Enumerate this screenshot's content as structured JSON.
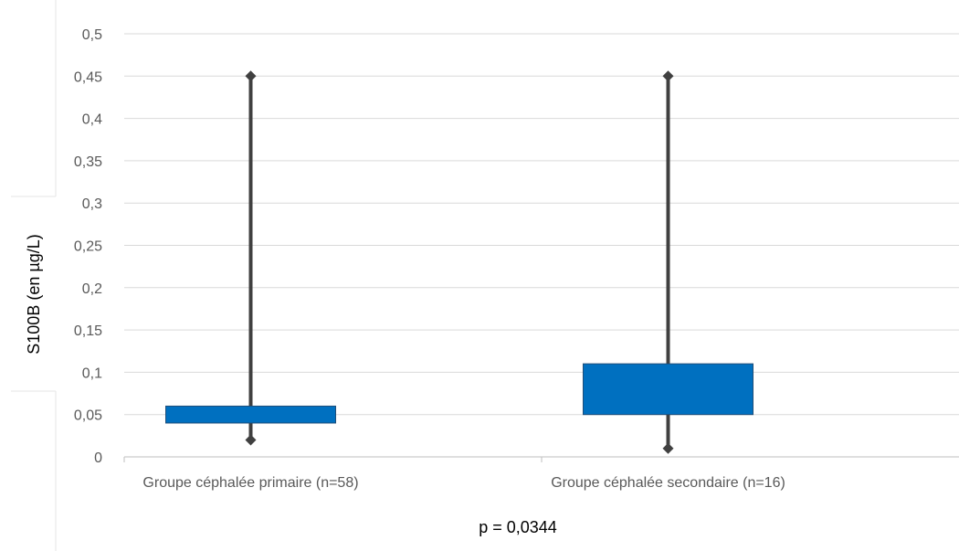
{
  "chart_data": {
    "type": "box",
    "ylabel": "S100B (en µg/L)",
    "xlabel": "",
    "ylim": [
      0,
      0.5
    ],
    "yticks": [
      0,
      0.05,
      0.1,
      0.15,
      0.2,
      0.25,
      0.3,
      0.35,
      0.4,
      0.45,
      0.5
    ],
    "ytick_labels": [
      "0",
      "0,05",
      "0,1",
      "0,15",
      "0,2",
      "0,25",
      "0,3",
      "0,35",
      "0,4",
      "0,45",
      "0,5"
    ],
    "categories": [
      "Groupe céphalée primaire (n=58)",
      "Groupe céphalée secondaire (n=16)"
    ],
    "boxes": [
      {
        "min": 0.02,
        "q1": 0.04,
        "q3": 0.06,
        "max": 0.45
      },
      {
        "min": 0.01,
        "q1": 0.05,
        "q3": 0.11,
        "max": 0.45
      }
    ],
    "grid": true,
    "annotation": "p = 0,0344",
    "colors": {
      "box": "#0070c0",
      "box_border": "#1f4e79",
      "whisker": "#404040",
      "grid": "#d9d9d9",
      "axis": "#bfbfbf"
    }
  }
}
